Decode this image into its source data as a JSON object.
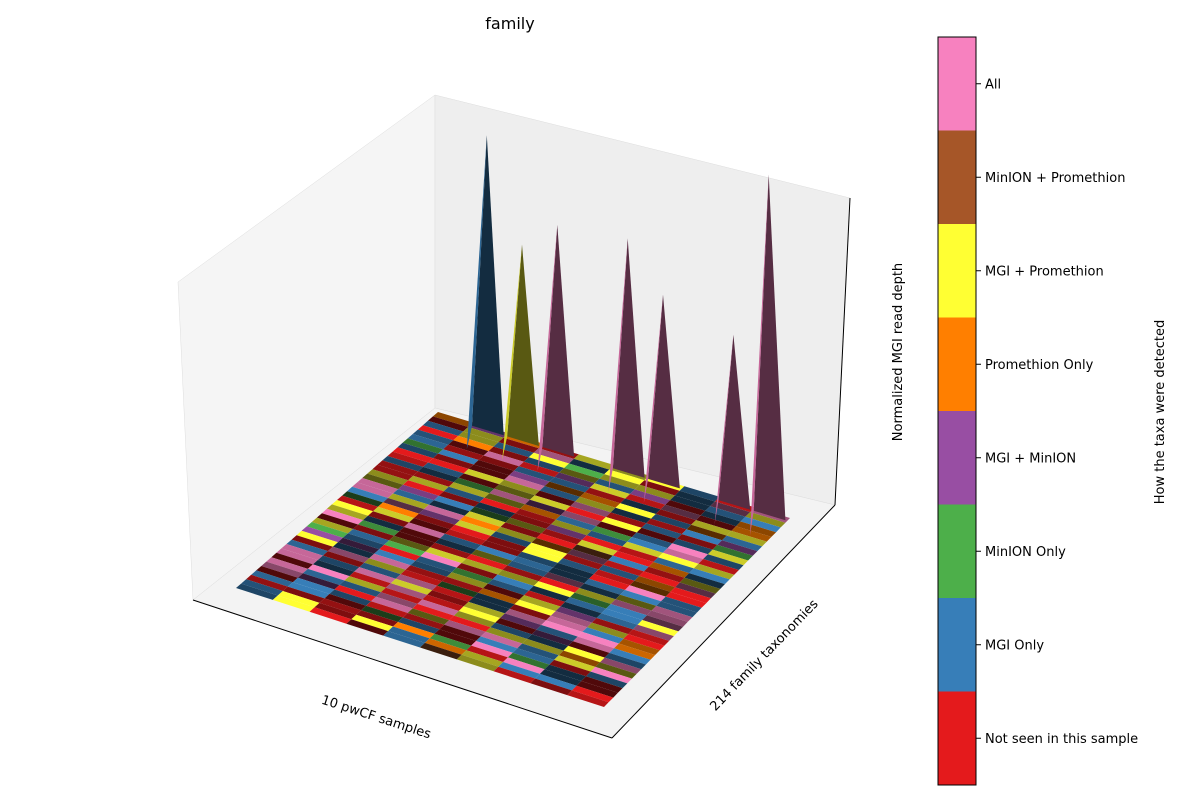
{
  "chart_data": {
    "type": "heatmap",
    "title": "family",
    "xlabel": "10 pwCF samples",
    "ylabel": "214 family taxonomies",
    "zlabel": "Normalized MGI read depth",
    "colorbar_label": "How the taxa were detected",
    "categories": [
      {
        "label": "Not seen in this sample",
        "color": "#e41a1c"
      },
      {
        "label": "MGI Only",
        "color": "#377eb8"
      },
      {
        "label": "MinION Only",
        "color": "#4daf4a"
      },
      {
        "label": "MGI + MinION",
        "color": "#984ea3"
      },
      {
        "label": "Promethion Only",
        "color": "#ff7f00"
      },
      {
        "label": "MGI + Promethion",
        "color": "#ffff33"
      },
      {
        "label": "MinION + Promethion",
        "color": "#a65628"
      },
      {
        "label": "All",
        "color": "#f781bf"
      }
    ],
    "samples": 10,
    "taxa": 214,
    "peaks": [
      {
        "sample": 1,
        "value": 0.78,
        "category": "MGI Only"
      },
      {
        "sample": 2,
        "value": 0.52,
        "category": "MGI + Promethion"
      },
      {
        "sample": 3,
        "value": 0.6,
        "category": "All"
      },
      {
        "sample": 5,
        "value": 0.62,
        "category": "All"
      },
      {
        "sample": 6,
        "value": 0.5,
        "category": "All"
      },
      {
        "sample": 8,
        "value": 0.45,
        "category": "All"
      },
      {
        "sample": 9,
        "value": 0.9,
        "category": "All"
      }
    ]
  }
}
